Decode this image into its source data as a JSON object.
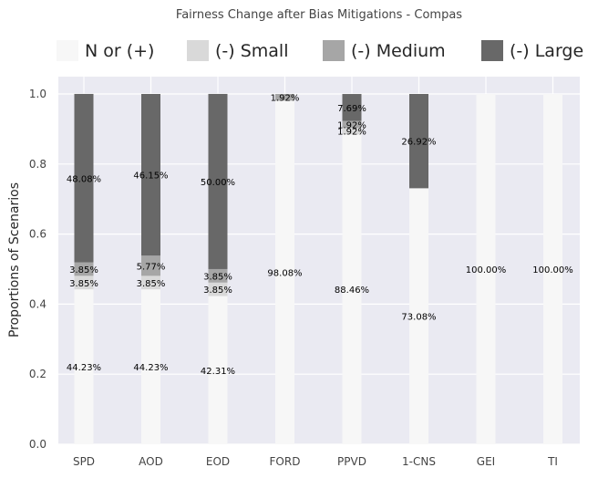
{
  "chart_data": {
    "type": "bar",
    "stacked": true,
    "title": "Fairness Change after Bias Mitigations - Compas",
    "ylabel": "Proportions of Scenarios",
    "xlabel": "",
    "ylim": [
      0,
      1.05
    ],
    "yticks": [
      "0.0",
      "0.2",
      "0.4",
      "0.6",
      "0.8",
      "1.0"
    ],
    "grid": true,
    "legend_position": "top",
    "categories": [
      "SPD",
      "AOD",
      "EOD",
      "FORD",
      "PPVD",
      "1-CNS",
      "GEI",
      "TI"
    ],
    "series": [
      {
        "name": "N or (+)",
        "color": "#f7f7f7",
        "values": [
          0.4423,
          0.4423,
          0.4231,
          0.9808,
          0.8846,
          0.7308,
          1.0,
          1.0
        ],
        "labels": [
          "44.23%",
          "44.23%",
          "42.31%",
          "98.08%",
          "88.46%",
          "73.08%",
          "100.00%",
          "100.00%"
        ]
      },
      {
        "name": "(-) Small",
        "color": "#d9d9d9",
        "values": [
          0.0385,
          0.0385,
          0.0385,
          0.0,
          0.0192,
          0.0,
          0.0,
          0.0
        ],
        "labels": [
          "3.85%",
          "3.85%",
          "3.85%",
          "",
          "1.92%",
          "",
          "",
          ""
        ]
      },
      {
        "name": "(-) Medium",
        "color": "#a6a6a6",
        "values": [
          0.0385,
          0.0577,
          0.0385,
          0.0192,
          0.0192,
          0.0,
          0.0,
          0.0
        ],
        "labels": [
          "3.85%",
          "5.77%",
          "3.85%",
          "1.92%",
          "1.92%",
          "",
          "",
          ""
        ]
      },
      {
        "name": "(-) Large",
        "color": "#686868",
        "values": [
          0.4808,
          0.4615,
          0.5,
          0.0,
          0.0769,
          0.2692,
          0.0,
          0.0
        ],
        "labels": [
          "48.08%",
          "46.15%",
          "50.00%",
          "",
          "7.69%",
          "26.92%",
          "",
          ""
        ]
      }
    ]
  }
}
